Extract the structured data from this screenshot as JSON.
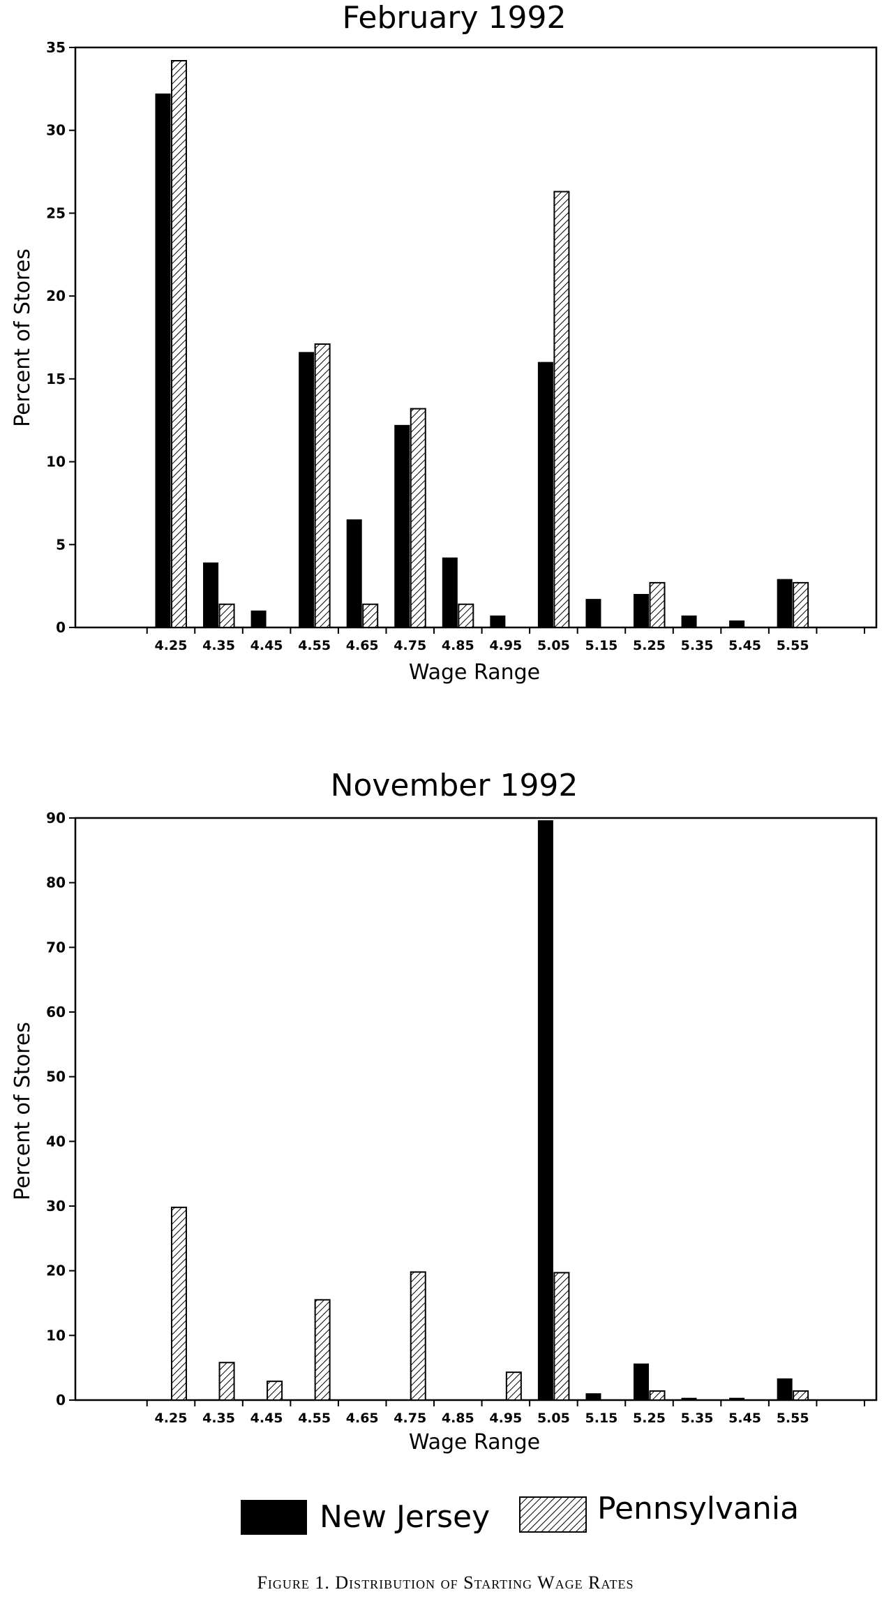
{
  "figure": {
    "caption": "Figure 1. Distribution of Starting Wage Rates",
    "legend": [
      {
        "label": "New Jersey",
        "fill": "solid",
        "color": "#000000"
      },
      {
        "label": "Pennsylvania",
        "fill": "hatched",
        "color": "#000000"
      }
    ]
  },
  "chart_data": [
    {
      "type": "bar",
      "title": "February 1992",
      "xlabel": "Wage Range",
      "ylabel": "Percent of Stores",
      "ylim": [
        0,
        35
      ],
      "yticks": [
        0,
        5,
        10,
        15,
        20,
        25,
        30,
        35
      ],
      "categories": [
        "4.25",
        "4.35",
        "4.45",
        "4.55",
        "4.65",
        "4.75",
        "4.85",
        "4.95",
        "5.05",
        "5.15",
        "5.25",
        "5.35",
        "5.45",
        "5.55"
      ],
      "series": [
        {
          "name": "New Jersey",
          "values": [
            32.2,
            3.9,
            1.0,
            16.6,
            6.5,
            12.2,
            4.2,
            0.7,
            16.0,
            1.7,
            2.0,
            0.7,
            0.4,
            2.9
          ]
        },
        {
          "name": "Pennsylvania",
          "values": [
            34.2,
            1.4,
            0,
            17.1,
            1.4,
            13.2,
            1.4,
            0,
            26.3,
            0,
            2.7,
            0,
            0,
            2.7
          ]
        }
      ]
    },
    {
      "type": "bar",
      "title": "November 1992",
      "xlabel": "Wage Range",
      "ylabel": "Percent of Stores",
      "ylim": [
        0,
        90
      ],
      "yticks": [
        0,
        10,
        20,
        30,
        40,
        50,
        60,
        70,
        80,
        90
      ],
      "categories": [
        "4.25",
        "4.35",
        "4.45",
        "4.55",
        "4.65",
        "4.75",
        "4.85",
        "4.95",
        "5.05",
        "5.15",
        "5.25",
        "5.35",
        "5.45",
        "5.55"
      ],
      "series": [
        {
          "name": "New Jersey",
          "values": [
            0,
            0,
            0,
            0,
            0,
            0,
            0,
            0,
            89.6,
            1.0,
            5.6,
            0.3,
            0.3,
            3.3
          ]
        },
        {
          "name": "Pennsylvania",
          "values": [
            29.8,
            5.8,
            2.9,
            15.5,
            0,
            19.8,
            0,
            4.3,
            19.7,
            0,
            1.4,
            0,
            0,
            1.4
          ]
        }
      ]
    }
  ]
}
